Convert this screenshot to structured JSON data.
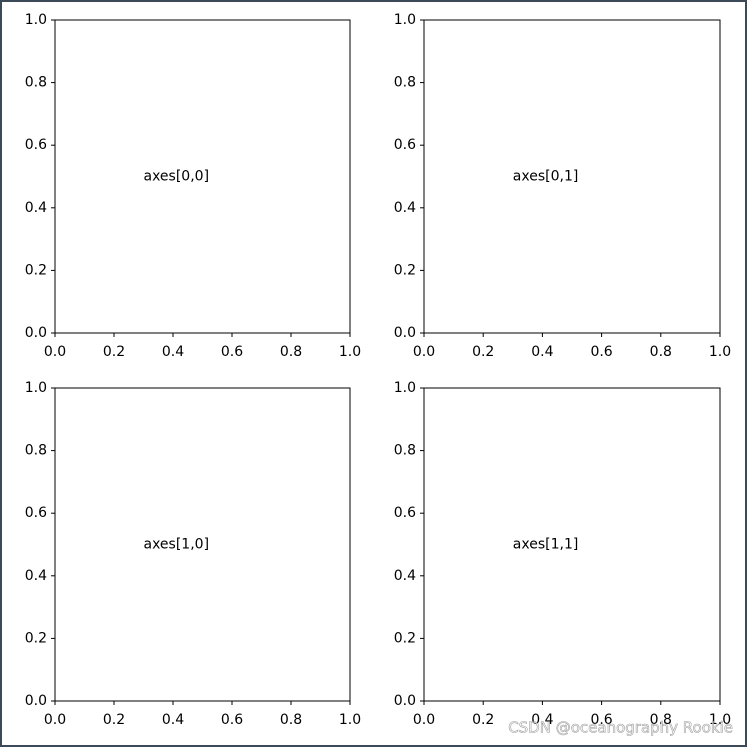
{
  "chart_data": [
    {
      "type": "empty",
      "annotation": "axes[0,0]",
      "xlim": [
        0,
        1
      ],
      "ylim": [
        0,
        1
      ],
      "xticks": [
        {
          "value": 0,
          "label": "0.0"
        },
        0.2,
        0.4,
        0.6,
        0.8,
        {
          "value": 1,
          "label": "1.0"
        }
      ],
      "yticks": [
        {
          "value": 0,
          "label": "0.0"
        },
        0.2,
        0.4,
        0.6,
        0.8,
        {
          "value": 1,
          "label": "1.0"
        }
      ]
    },
    {
      "type": "empty",
      "annotation": "axes[0,1]",
      "xlim": [
        0,
        1
      ],
      "ylim": [
        0,
        1
      ],
      "xticks": [
        {
          "value": 0,
          "label": "0.0"
        },
        0.2,
        0.4,
        0.6,
        0.8,
        {
          "value": 1,
          "label": "1.0"
        }
      ],
      "yticks": [
        {
          "value": 0,
          "label": "0.0"
        },
        0.2,
        0.4,
        0.6,
        0.8,
        {
          "value": 1,
          "label": "1.0"
        }
      ]
    },
    {
      "type": "empty",
      "annotation": "axes[1,0]",
      "xlim": [
        0,
        1
      ],
      "ylim": [
        0,
        1
      ],
      "xticks": [
        {
          "value": 0,
          "label": "0.0"
        },
        0.2,
        0.4,
        0.6,
        0.8,
        {
          "value": 1,
          "label": "1.0"
        }
      ],
      "yticks": [
        {
          "value": 0,
          "label": "0.0"
        },
        0.2,
        0.4,
        0.6,
        0.8,
        {
          "value": 1,
          "label": "1.0"
        }
      ]
    },
    {
      "type": "empty",
      "annotation": "axes[1,1]",
      "xlim": [
        0,
        1
      ],
      "ylim": [
        0,
        1
      ],
      "xticks": [
        {
          "value": 0,
          "label": "0.0"
        },
        0.2,
        0.4,
        0.6,
        0.8,
        {
          "value": 1,
          "label": "1.0"
        }
      ],
      "yticks": [
        {
          "value": 0,
          "label": "0.0"
        },
        0.2,
        0.4,
        0.6,
        0.8,
        {
          "value": 1,
          "label": "1.0"
        }
      ]
    }
  ],
  "watermark": "CSDN @oceanography Rookie"
}
